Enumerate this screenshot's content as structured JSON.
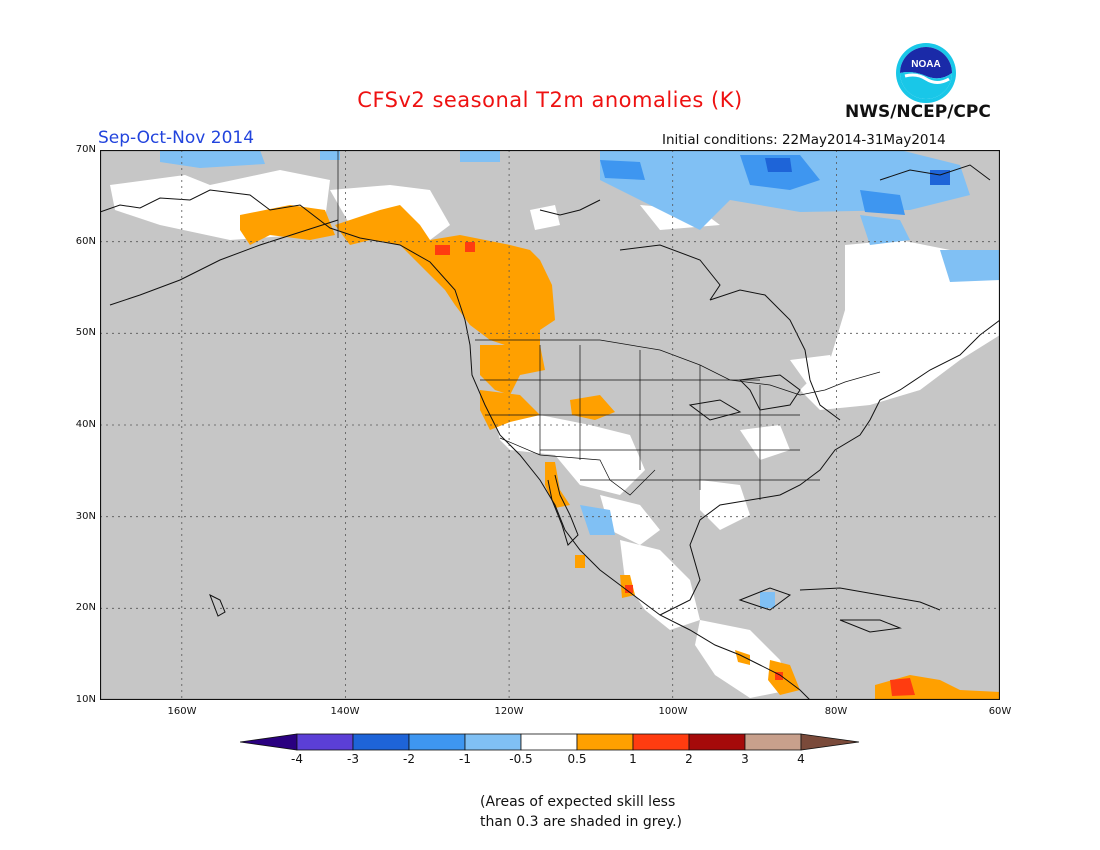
{
  "header": {
    "title": "CFSv2 seasonal T2m anomalies (K)",
    "season": "Sep-Oct-Nov 2014",
    "initial_conditions": "Initial conditions: 22May2014-31May2014",
    "agency": "NWS/NCEP/CPC",
    "logo_text": "NOAA"
  },
  "map": {
    "lon_range": [
      -170,
      -60
    ],
    "lat_range": [
      10,
      70
    ],
    "lat_labels": [
      "70N",
      "60N",
      "50N",
      "40N",
      "30N",
      "20N",
      "10N"
    ],
    "lon_labels": [
      "160W",
      "140W",
      "120W",
      "100W",
      "80W",
      "60W"
    ],
    "grid": true
  },
  "legend": {
    "labels": [
      "-4",
      "-3",
      "-2",
      "-1",
      "-0.5",
      "0.5",
      "1",
      "2",
      "3",
      "4"
    ],
    "colors": {
      "lt_-4": "#2a0080",
      "-4_-3": "#5b3fd6",
      "-3_-2": "#1e64d8",
      "-2_-1": "#3e96f0",
      "-1_-0.5": "#80c0f4",
      "-0.5_0.5": "#ffffff",
      "0.5_1": "#ffa000",
      "1_2": "#ff3c10",
      "2_3": "#a50a0a",
      "3_4": "#c8a08c",
      "gt_4": "#7a4a3a",
      "low_skill": "#c6c6c6"
    }
  },
  "note": {
    "line1": "(Areas of expected skill less",
    "line2": "than 0.3 are shaded in grey.)"
  }
}
